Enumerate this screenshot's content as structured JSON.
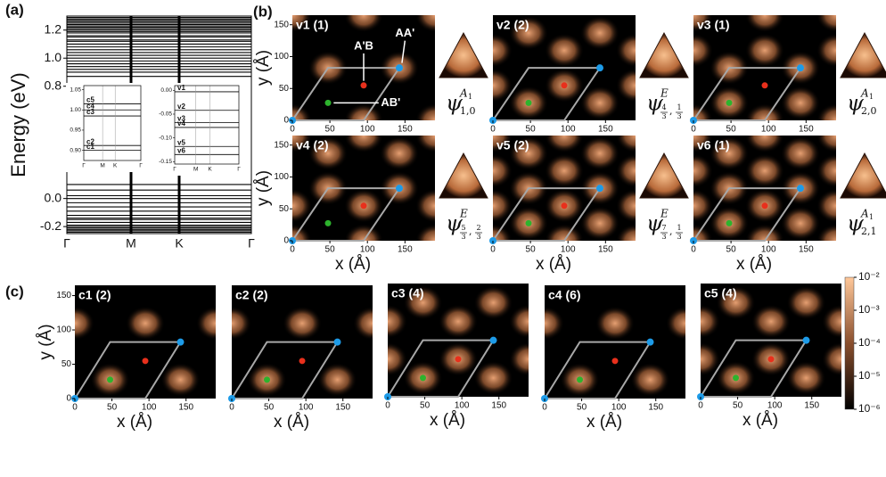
{
  "panel_labels": {
    "a": "(a)",
    "b": "(b)",
    "c": "(c)"
  },
  "band_chart": {
    "type": "line",
    "y_label": "Energy (eV)",
    "categories": [
      "Γ",
      "M",
      "K",
      "Γ"
    ],
    "ylim": [
      -0.25,
      1.3
    ],
    "yticks": [
      1.2,
      {
        "value": 1,
        "label": "1.0"
      },
      0.8,
      {
        "value": 0,
        "label": "0.0"
      },
      -0.2
    ],
    "color": "#000000",
    "bands": [
      1.29,
      1.28,
      1.27,
      1.26,
      1.25,
      1.24,
      1.23,
      1.22,
      1.21,
      1.2,
      1.19,
      1.18,
      1.16,
      1.15,
      1.13,
      1.12,
      1.1,
      1.08,
      1.06,
      1.04,
      1.02,
      1.0,
      0.98,
      0.96,
      0.94,
      0.92,
      0.9,
      0.87,
      0.1,
      0.06,
      0.02,
      0.0,
      -0.03,
      -0.06,
      -0.09,
      -0.12,
      -0.14,
      -0.15,
      -0.17,
      -0.19,
      -0.2,
      -0.21,
      -0.22,
      -0.23,
      -0.24
    ]
  },
  "inset_conduction": {
    "ylim": [
      0.875,
      1.06
    ],
    "yticks": [
      {
        "value": 1.05,
        "label": "1.05"
      },
      {
        "value": 1,
        "label": "1.00"
      },
      0.95,
      {
        "value": 0.9,
        "label": "0.90"
      }
    ],
    "bands": [
      {
        "name": "c5",
        "value": 1.015
      },
      {
        "name": "c4",
        "value": 1.0
      },
      {
        "name": "c3",
        "value": 0.985
      },
      {
        "name": "c2",
        "value": 0.912
      },
      {
        "name": "c1",
        "value": 0.9
      }
    ]
  },
  "inset_valence": {
    "ylim": [
      -0.155,
      0.01
    ],
    "yticks": [
      {
        "value": 0,
        "label": "0.00"
      },
      -0.05,
      {
        "value": -0.1,
        "label": "-0.10"
      },
      -0.15
    ],
    "bands": [
      {
        "name": "v1",
        "value": -0.003
      },
      {
        "name": "v2",
        "value": -0.042
      },
      {
        "name": "v3",
        "value": -0.068
      },
      {
        "name": "v4",
        "value": -0.078
      },
      {
        "name": "v5",
        "value": -0.118
      },
      {
        "name": "v6",
        "value": -0.135
      }
    ]
  },
  "maps": {
    "x_label": "x (Å)",
    "y_label": "y (Å)",
    "xlim": [
      0,
      190
    ],
    "ylim": [
      0,
      165
    ],
    "ticks": [
      0,
      50,
      100,
      150
    ],
    "cell": [
      {
        "x": 0,
        "y": 0
      },
      {
        "x": 95,
        "y": 0
      },
      {
        "x": 142.5,
        "y": 82.3
      },
      {
        "x": 47.5,
        "y": 82.3
      }
    ],
    "sites": [
      {
        "x": 0,
        "y": 0,
        "color": "#1d9be8"
      },
      {
        "x": 142.5,
        "y": 82.3,
        "color": "#1d9be8",
        "label": "AA'"
      },
      {
        "x": 95,
        "y": 54.8,
        "color": "#e8301c",
        "label": "A'B"
      },
      {
        "x": 47.5,
        "y": 27.4,
        "color": "#2db32d",
        "label": "AB'"
      }
    ],
    "panels": [
      {
        "title": "v1 (1)",
        "symmetry": {
          "symbol": "ψ",
          "rep": "A",
          "rep_sub": "1",
          "index": [
            "1,0"
          ]
        }
      },
      {
        "title": "v2 (2)",
        "symmetry": {
          "symbol": "ψ",
          "rep": "E",
          "index": [
            {
              "num": "4",
              "den": "3"
            },
            ",",
            {
              "num": "1",
              "den": "3"
            }
          ]
        }
      },
      {
        "title": "v3 (1)",
        "symmetry": {
          "symbol": "ψ",
          "rep": "A",
          "rep_sub": "1",
          "index": [
            "2,0"
          ]
        }
      },
      {
        "title": "v4 (2)",
        "symmetry": {
          "symbol": "ψ",
          "rep": "E",
          "index": [
            {
              "num": "5",
              "den": "3"
            },
            ",",
            {
              "num": "2",
              "den": "3"
            }
          ]
        }
      },
      {
        "title": "v5 (2)",
        "symmetry": {
          "symbol": "ψ",
          "rep": "E",
          "index": [
            {
              "num": "7",
              "den": "3"
            },
            ",",
            {
              "num": "1",
              "den": "3"
            }
          ]
        }
      },
      {
        "title": "v6 (1)",
        "symmetry": {
          "symbol": "ψ",
          "rep": "A",
          "rep_sub": "1",
          "index": [
            "2,1"
          ]
        }
      },
      {
        "title": "c1 (2)"
      },
      {
        "title": "c2 (2)"
      },
      {
        "title": "c3 (4)"
      },
      {
        "title": "c4 (6)"
      },
      {
        "title": "c5 (4)"
      }
    ]
  },
  "colorbar": {
    "scale": "log",
    "lim": [
      1e-06,
      0.01
    ],
    "ticks": [
      {
        "value": 0.01,
        "label": "10⁻²"
      },
      {
        "value": 0.001,
        "label": "10⁻³"
      },
      {
        "value": 0.0001,
        "label": "10⁻⁴"
      },
      {
        "value": 1e-05,
        "label": "10⁻⁵"
      },
      {
        "value": 1e-06,
        "label": "10⁻⁶"
      }
    ]
  }
}
